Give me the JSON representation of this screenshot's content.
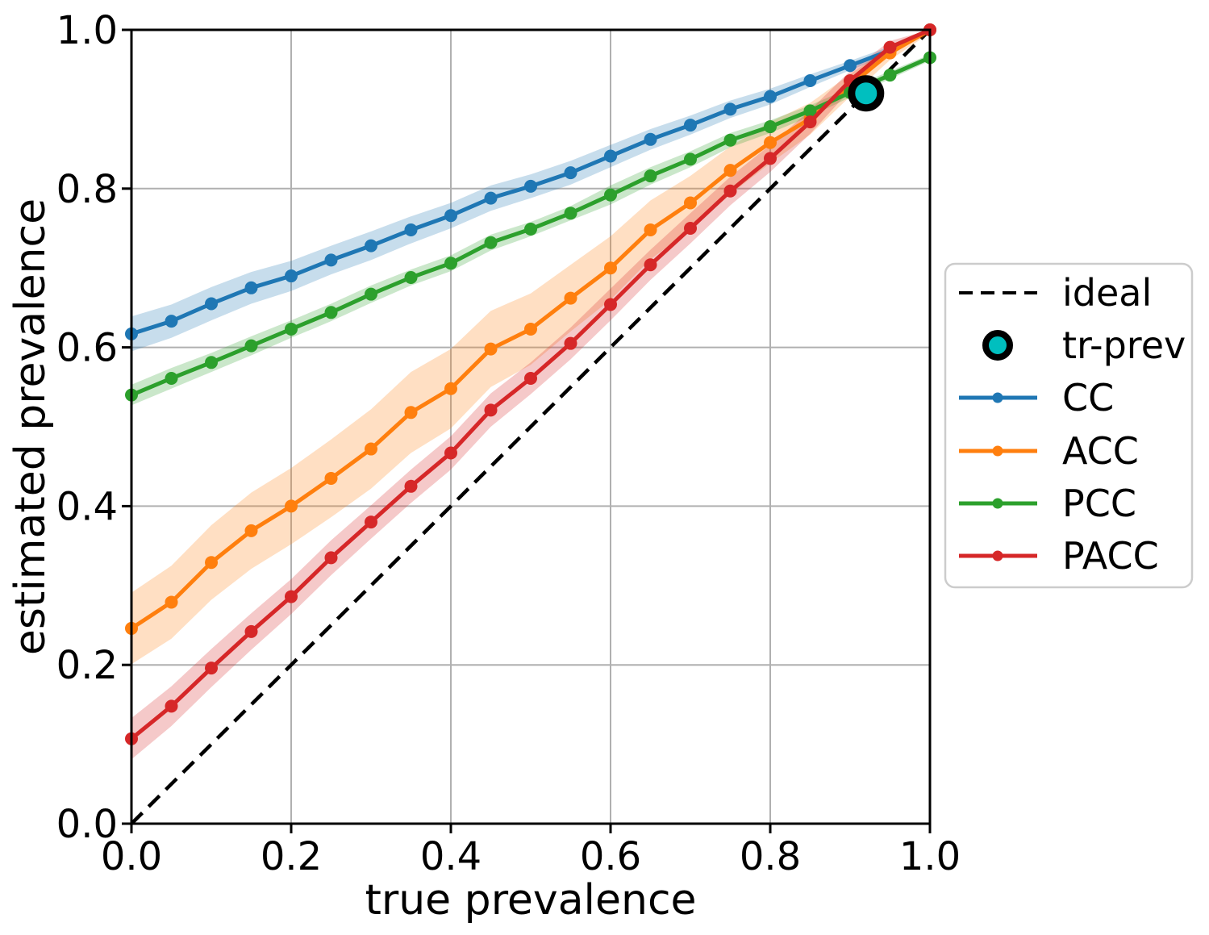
{
  "figure": {
    "background": "#ffffff",
    "grid_color": "#b0b0b0",
    "frame_color": "#000000"
  },
  "chart_data": {
    "type": "line",
    "title": "",
    "xlabel": "true prevalence",
    "ylabel": "estimated prevalence",
    "xlim": [
      0.0,
      1.0
    ],
    "ylim": [
      0.0,
      1.0
    ],
    "grid": true,
    "legend_position": "center right outside",
    "xticks": [
      "0.0",
      "0.2",
      "0.4",
      "0.6",
      "0.8",
      "1.0"
    ],
    "yticks": [
      "0.0",
      "0.2",
      "0.4",
      "0.6",
      "0.8",
      "1.0"
    ],
    "x": [
      0.0,
      0.05,
      0.1,
      0.15,
      0.2,
      0.25,
      0.3,
      0.35,
      0.4,
      0.45,
      0.5,
      0.55,
      0.6,
      0.65,
      0.7,
      0.75,
      0.8,
      0.85,
      0.9,
      0.95,
      1.0
    ],
    "series": [
      {
        "name": "CC",
        "color": "#1f77b4",
        "values": [
          0.617,
          0.633,
          0.655,
          0.675,
          0.69,
          0.71,
          0.728,
          0.748,
          0.766,
          0.788,
          0.803,
          0.82,
          0.841,
          0.862,
          0.88,
          0.9,
          0.916,
          0.936,
          0.955,
          0.974,
          1.0
        ],
        "band_halfwidth": [
          0.022,
          0.021,
          0.021,
          0.02,
          0.019,
          0.018,
          0.018,
          0.017,
          0.016,
          0.016,
          0.015,
          0.015,
          0.014,
          0.013,
          0.012,
          0.011,
          0.01,
          0.008,
          0.006,
          0.005,
          0.003
        ]
      },
      {
        "name": "ACC",
        "color": "#ff7f0e",
        "values": [
          0.246,
          0.279,
          0.329,
          0.369,
          0.4,
          0.435,
          0.472,
          0.518,
          0.548,
          0.598,
          0.623,
          0.662,
          0.7,
          0.748,
          0.782,
          0.823,
          0.858,
          0.888,
          0.93,
          0.971,
          1.0
        ],
        "band_halfwidth": [
          0.045,
          0.046,
          0.047,
          0.048,
          0.048,
          0.049,
          0.05,
          0.051,
          0.05,
          0.048,
          0.045,
          0.042,
          0.04,
          0.037,
          0.034,
          0.03,
          0.026,
          0.02,
          0.014,
          0.009,
          0.004
        ]
      },
      {
        "name": "PCC",
        "color": "#2ca02c",
        "values": [
          0.54,
          0.561,
          0.581,
          0.602,
          0.623,
          0.644,
          0.667,
          0.688,
          0.706,
          0.732,
          0.749,
          0.769,
          0.792,
          0.816,
          0.837,
          0.861,
          0.878,
          0.898,
          0.921,
          0.943,
          0.965
        ],
        "band_halfwidth": [
          0.013,
          0.013,
          0.012,
          0.012,
          0.011,
          0.011,
          0.011,
          0.01,
          0.01,
          0.01,
          0.009,
          0.009,
          0.012,
          0.011,
          0.01,
          0.009,
          0.008,
          0.007,
          0.006,
          0.005,
          0.004
        ]
      },
      {
        "name": "PACC",
        "color": "#d62728",
        "values": [
          0.107,
          0.148,
          0.196,
          0.242,
          0.286,
          0.335,
          0.38,
          0.425,
          0.467,
          0.521,
          0.561,
          0.605,
          0.654,
          0.704,
          0.75,
          0.797,
          0.838,
          0.884,
          0.936,
          0.978,
          1.0
        ],
        "band_halfwidth": [
          0.026,
          0.025,
          0.024,
          0.023,
          0.022,
          0.022,
          0.021,
          0.021,
          0.021,
          0.021,
          0.02,
          0.02,
          0.02,
          0.019,
          0.019,
          0.018,
          0.017,
          0.015,
          0.012,
          0.008,
          0.004
        ]
      }
    ],
    "ideal": {
      "label": "ideal",
      "style": "dashed",
      "color": "#000000",
      "from": [
        0.0,
        0.0
      ],
      "to": [
        1.0,
        1.0
      ]
    },
    "tr_prev": {
      "label": "tr-prev",
      "x": 0.92,
      "y": 0.92,
      "color": "#00bfbf",
      "edge_color": "#000000"
    }
  },
  "legend": {
    "items": [
      {
        "label": "ideal"
      },
      {
        "label": "tr-prev"
      },
      {
        "label": "CC"
      },
      {
        "label": "ACC"
      },
      {
        "label": "PCC"
      },
      {
        "label": "PACC"
      }
    ]
  }
}
